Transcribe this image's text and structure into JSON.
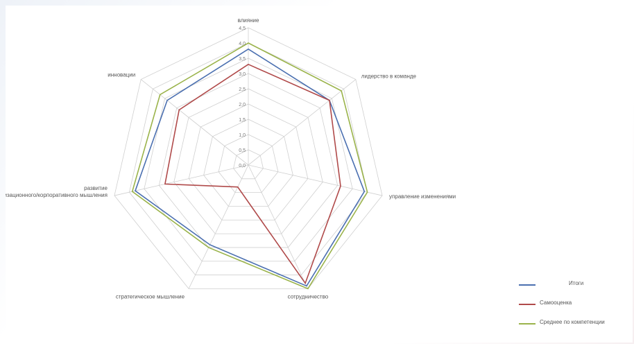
{
  "chart_data": {
    "type": "radar",
    "axes": [
      "влияние",
      "лидерство в команде",
      "управление изменениями",
      "сотрудничество",
      "стратегическое мышление",
      "развитие организационного/корпоративного мышления",
      "инновации"
    ],
    "rlim": [
      0,
      4.5
    ],
    "ticks": [
      "0,0",
      "0,5",
      "1,0",
      "1,5",
      "2,0",
      "2,5",
      "3,0",
      "3,5",
      "4,0",
      "4,5"
    ],
    "grid": true,
    "legend_position": "bottom-right",
    "series": [
      {
        "name": "Итоги",
        "color": "#4a6fb0",
        "values": [
          3.8,
          3.4,
          3.9,
          4.4,
          2.9,
          3.8,
          3.4
        ]
      },
      {
        "name": "Самооценка",
        "color": "#b04a4a",
        "values": [
          3.3,
          3.4,
          3.1,
          4.3,
          0.8,
          2.8,
          2.9
        ]
      },
      {
        "name": "Среднее по компетенции",
        "color": "#9ab34a",
        "values": [
          4.0,
          3.9,
          4.0,
          4.5,
          3.0,
          3.9,
          3.7
        ]
      }
    ]
  },
  "legend": {
    "items": [
      {
        "label": "Итоги",
        "color": "#4a6fb0"
      },
      {
        "label": "Самооценка",
        "color": "#b04a4a"
      },
      {
        "label": "Среднее по компетенции",
        "color": "#9ab34a"
      }
    ]
  }
}
